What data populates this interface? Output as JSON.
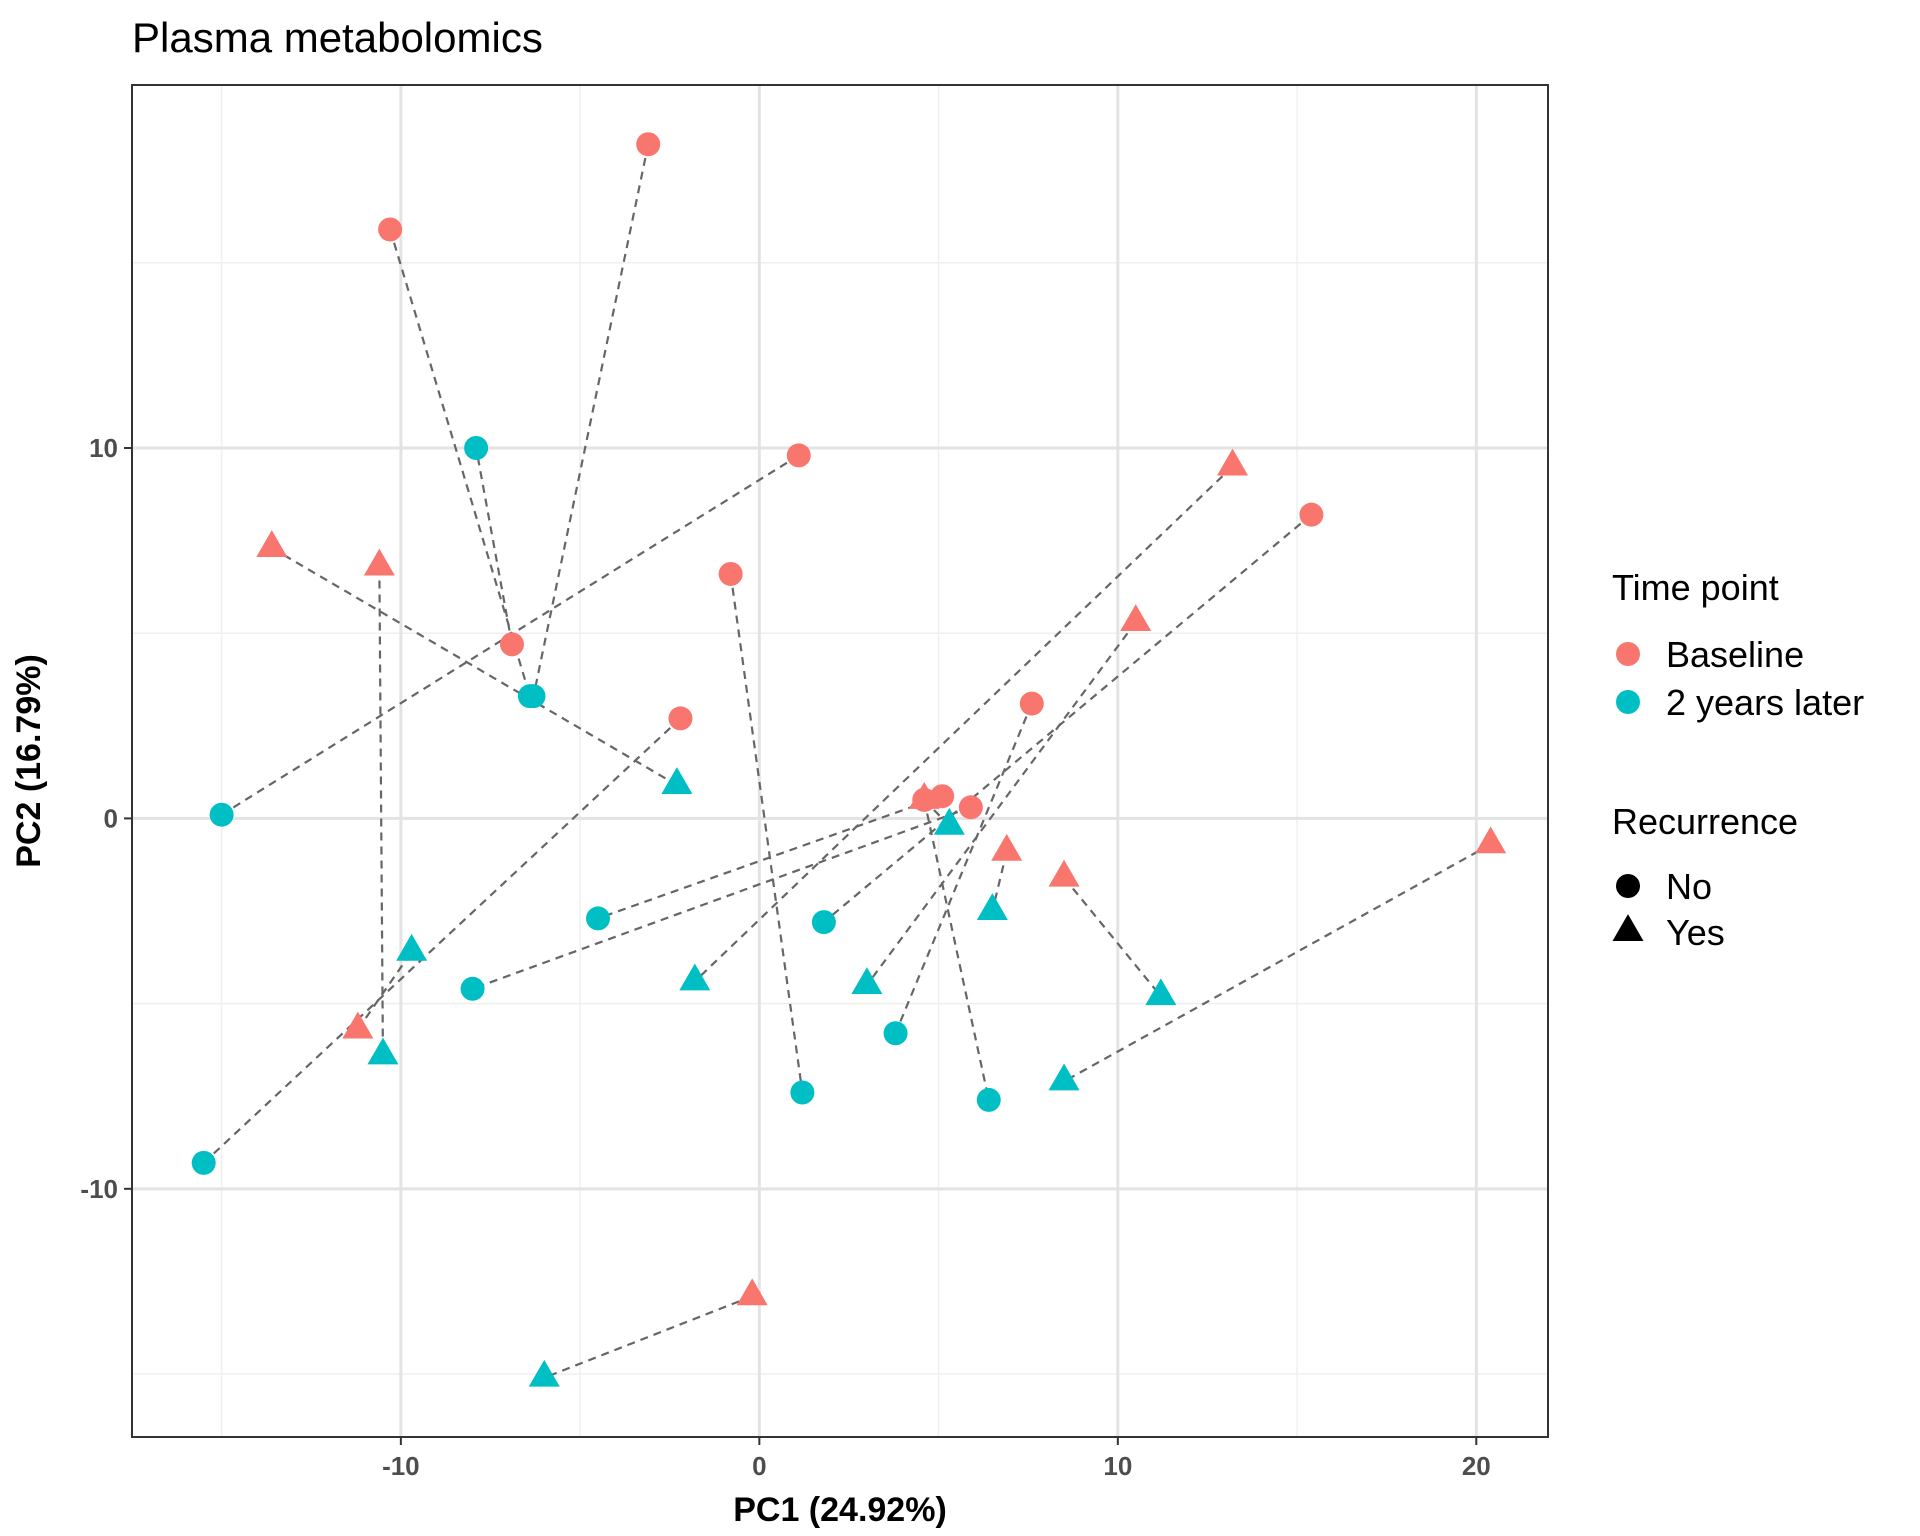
{
  "chart_data": {
    "type": "scatter",
    "title": "Plasma metabolomics",
    "xlabel": "PC1 (24.92%)",
    "ylabel": "PC2 (16.79%)",
    "xlim": [
      -17.5,
      22
    ],
    "ylim": [
      -16.7,
      19.8
    ],
    "x_ticks": [
      -10,
      0,
      10,
      20
    ],
    "y_ticks": [
      -10,
      0,
      10
    ],
    "x_tick_labels": [
      "-10",
      "0",
      "10",
      "20"
    ],
    "y_tick_labels": [
      "-10",
      "0",
      "10"
    ],
    "grid": true,
    "legend_position": "right",
    "color_legend": {
      "title": "Time point",
      "entries": [
        {
          "label": "Baseline",
          "color": "#F8766D"
        },
        {
          "label": "2 years later",
          "color": "#00BFC4"
        }
      ]
    },
    "shape_legend": {
      "title": "Recurrence",
      "entries": [
        {
          "label": "No",
          "shape": "circle"
        },
        {
          "label": "Yes",
          "shape": "triangle"
        }
      ]
    },
    "pairs": [
      {
        "baseline": [
          -3.1,
          18.2
        ],
        "later": [
          -6.3,
          3.3
        ],
        "recurrence": "No"
      },
      {
        "baseline": [
          -10.3,
          15.9
        ],
        "later": [
          -6.4,
          3.3
        ],
        "recurrence": "No"
      },
      {
        "baseline": [
          1.1,
          9.8
        ],
        "later": [
          -15.0,
          0.1
        ],
        "recurrence": "No"
      },
      {
        "baseline": [
          -6.9,
          4.7
        ],
        "later": [
          -7.9,
          10.0
        ],
        "recurrence": "No"
      },
      {
        "baseline": [
          -0.8,
          6.6
        ],
        "later": [
          1.2,
          -7.4
        ],
        "recurrence": "No"
      },
      {
        "baseline": [
          -2.2,
          2.7
        ],
        "later": [
          -15.5,
          -9.3
        ],
        "recurrence": "No"
      },
      {
        "baseline": [
          15.4,
          8.2
        ],
        "later": [
          1.8,
          -2.8
        ],
        "recurrence": "No"
      },
      {
        "baseline": [
          4.6,
          0.5
        ],
        "later": [
          6.4,
          -7.6
        ],
        "recurrence": "No"
      },
      {
        "baseline": [
          5.1,
          0.6
        ],
        "later": [
          -4.5,
          -2.7
        ],
        "recurrence": "No"
      },
      {
        "baseline": [
          5.9,
          0.3
        ],
        "later": [
          -8.0,
          -4.6
        ],
        "recurrence": "No"
      },
      {
        "baseline": [
          7.6,
          3.1
        ],
        "later": [
          3.8,
          -5.8
        ],
        "recurrence": "No"
      },
      {
        "baseline": [
          -13.6,
          7.3
        ],
        "later": [
          -2.3,
          0.9
        ],
        "recurrence": "Yes"
      },
      {
        "baseline": [
          -10.6,
          6.8
        ],
        "later": [
          -10.5,
          -6.4
        ],
        "recurrence": "Yes"
      },
      {
        "baseline": [
          -11.2,
          -5.7
        ],
        "later": [
          -9.7,
          -3.6
        ],
        "recurrence": "Yes"
      },
      {
        "baseline": [
          13.2,
          9.5
        ],
        "later": [
          -1.8,
          -4.4
        ],
        "recurrence": "Yes"
      },
      {
        "baseline": [
          10.5,
          5.3
        ],
        "later": [
          3.0,
          -4.5
        ],
        "recurrence": "Yes"
      },
      {
        "baseline": [
          6.9,
          -0.9
        ],
        "later": [
          6.5,
          -2.5
        ],
        "recurrence": "Yes"
      },
      {
        "baseline": [
          8.5,
          -1.6
        ],
        "later": [
          11.2,
          -4.8
        ],
        "recurrence": "Yes"
      },
      {
        "baseline": [
          20.4,
          -0.7
        ],
        "later": [
          8.5,
          -7.1
        ],
        "recurrence": "Yes"
      },
      {
        "baseline": [
          -0.2,
          -12.9
        ],
        "later": [
          -6.0,
          -15.1
        ],
        "recurrence": "Yes"
      },
      {
        "baseline": [
          4.6,
          0.5
        ],
        "later": [
          5.3,
          -0.2
        ],
        "recurrence": "Yes"
      }
    ],
    "unpaired_points": []
  }
}
